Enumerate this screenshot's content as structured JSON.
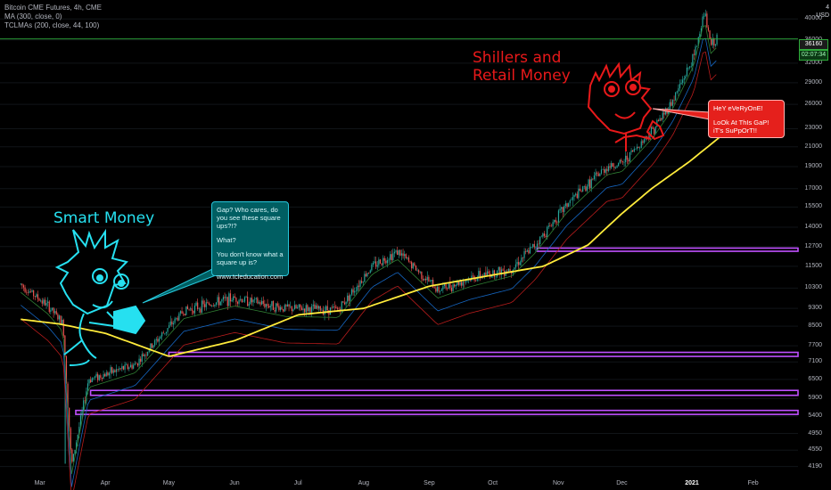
{
  "legend": {
    "title": "Bitcoin CME Futures, 4h, CME",
    "ma": "MA (300, close, 0)",
    "tclmas": "TCLMAs (200, close, 44, 100)"
  },
  "axis": {
    "currency": "USD",
    "corner": "4",
    "y_ticks": [
      "40000",
      "36000",
      "32000",
      "29000",
      "26000",
      "23000",
      "21000",
      "19000",
      "17000",
      "15500",
      "14000",
      "12700",
      "11500",
      "10300",
      "9300",
      "8500",
      "7700",
      "7100",
      "6500",
      "5900",
      "5400",
      "4950",
      "4550",
      "4190"
    ],
    "x_ticks": [
      "Mar",
      "Apr",
      "May",
      "Jun",
      "Jul",
      "Aug",
      "Sep",
      "Oct",
      "Nov",
      "Dec",
      "2021",
      "Feb"
    ],
    "last_price": "36160",
    "countdown": "02:07:34"
  },
  "annotations": {
    "smart_label": "Smart Money",
    "shill_label_1": "Shillers and",
    "shill_label_2": "Retail Money",
    "cyan_bubble": {
      "line1": "Gap? Who cares, do you see these square ups?!?",
      "line2": "What?",
      "line3": "You don't know what a square up is?",
      "line4": "www.tcleducation.com"
    },
    "red_bubble": {
      "line1": "HeY eVeRyOnE!",
      "line2": "LoOk At ThIs GaP! iT's SuPpOrT!!"
    }
  },
  "colors": {
    "background": "#000000",
    "up_candle": "#26a69a",
    "down_candle": "#ef5350",
    "ma300": "#ffeb3b",
    "gap_zone": "#c050ff",
    "smart_color": "#26e0f0",
    "shill_color": "#e8191a",
    "price_line": "#2eaa3a"
  },
  "chart_data": {
    "type": "line",
    "title": "Bitcoin CME Futures, 4h, CME",
    "scale": "log",
    "ylim": [
      4000,
      44000
    ],
    "x_categories": [
      "Mar",
      "Apr",
      "May",
      "Jun",
      "Jul",
      "Aug",
      "Sep",
      "Oct",
      "Nov",
      "Dec",
      "2021",
      "Feb"
    ],
    "series": [
      {
        "name": "Price",
        "x": [
          "Feb-20",
          "Mar-05",
          "Mar-12",
          "Mar-16",
          "Mar-24",
          "Apr-15",
          "May-08",
          "Jun-01",
          "Jun-25",
          "Jul-20",
          "Aug-05",
          "Aug-17",
          "Sep-05",
          "Sep-20",
          "Oct-10",
          "Oct-21",
          "Nov-05",
          "Nov-24",
          "Dec-01",
          "Dec-16",
          "Dec-25",
          "Jan-03",
          "Jan-08",
          "Jan-11",
          "Jan-14"
        ],
        "values": [
          10500,
          9400,
          8600,
          4200,
          6500,
          7000,
          9200,
          9800,
          9300,
          9250,
          11500,
          12400,
          10200,
          10800,
          11400,
          12800,
          15700,
          19000,
          19300,
          23000,
          26500,
          33000,
          41500,
          35000,
          36160
        ]
      },
      {
        "name": "MA (300, close, 0)",
        "x": [
          "Feb-20",
          "Mar-10",
          "Apr-01",
          "May-01",
          "Jun-01",
          "Jul-01",
          "Aug-01",
          "Sep-01",
          "Oct-01",
          "Oct-25",
          "Nov-15",
          "Dec-01",
          "Dec-15",
          "Jan-01",
          "Jan-15"
        ],
        "values": [
          8800,
          8600,
          8200,
          7300,
          7900,
          9000,
          9300,
          10400,
          11000,
          11500,
          12800,
          15000,
          17000,
          19500,
          22000
        ]
      }
    ],
    "zones": [
      {
        "from": "Oct-22",
        "to": "Jan-31",
        "low": 12400,
        "high": 12600
      },
      {
        "from": "May-01",
        "to": "Jan-31",
        "low": 7300,
        "high": 7450
      },
      {
        "from": "Mar-25",
        "to": "Jan-31",
        "low": 6000,
        "high": 6150
      },
      {
        "from": "Mar-18",
        "to": "Jan-31",
        "low": 5450,
        "high": 5560
      }
    ]
  }
}
